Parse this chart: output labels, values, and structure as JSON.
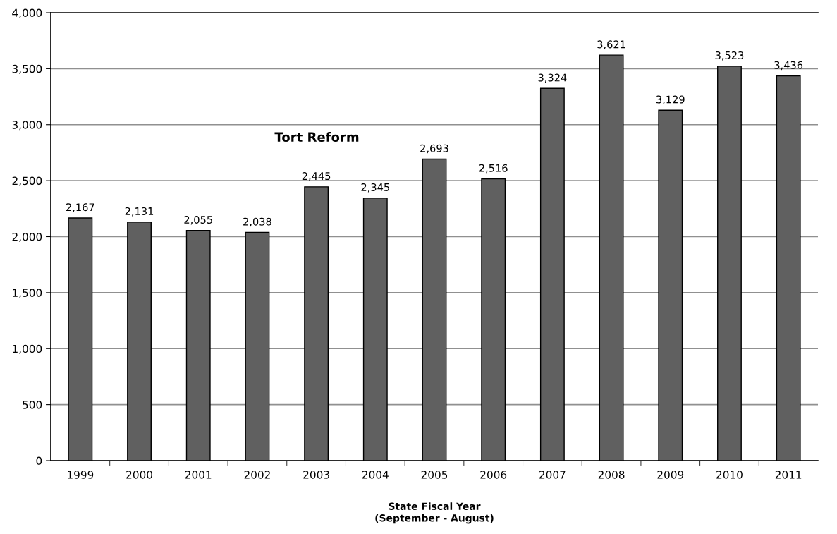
{
  "chart_data": {
    "type": "bar",
    "xlabel": "State Fiscal Year\n(September - August)",
    "categories": [
      "1999",
      "2000",
      "2001",
      "2002",
      "2003",
      "2004",
      "2005",
      "2006",
      "2007",
      "2008",
      "2009",
      "2010",
      "2011"
    ],
    "values": [
      2167,
      2131,
      2055,
      2038,
      2445,
      2345,
      2693,
      2516,
      3324,
      3621,
      3129,
      3523,
      3436
    ],
    "color": "#606060",
    "ylim": [
      0,
      4000
    ],
    "yticks": [
      0,
      500,
      {
        "value": 1000,
        "label": "1,000"
      },
      {
        "value": 1500,
        "label": "1,500"
      },
      {
        "value": 2000,
        "label": "2,000"
      },
      {
        "value": 2500,
        "label": "2,500"
      },
      {
        "value": 3000,
        "label": "3,000"
      },
      {
        "value": 3500,
        "label": "3,500"
      },
      {
        "value": 4000,
        "label": "4,000"
      }
    ],
    "grid": "y",
    "value_labels": [
      "2,167",
      "2,131",
      "2,055",
      "2,038",
      "2,445",
      "2,345",
      "2,693",
      "2,516",
      "3,324",
      "3,621",
      "3,129",
      "3,523",
      "3,436"
    ],
    "annotations": [
      "Tort Reform"
    ]
  }
}
